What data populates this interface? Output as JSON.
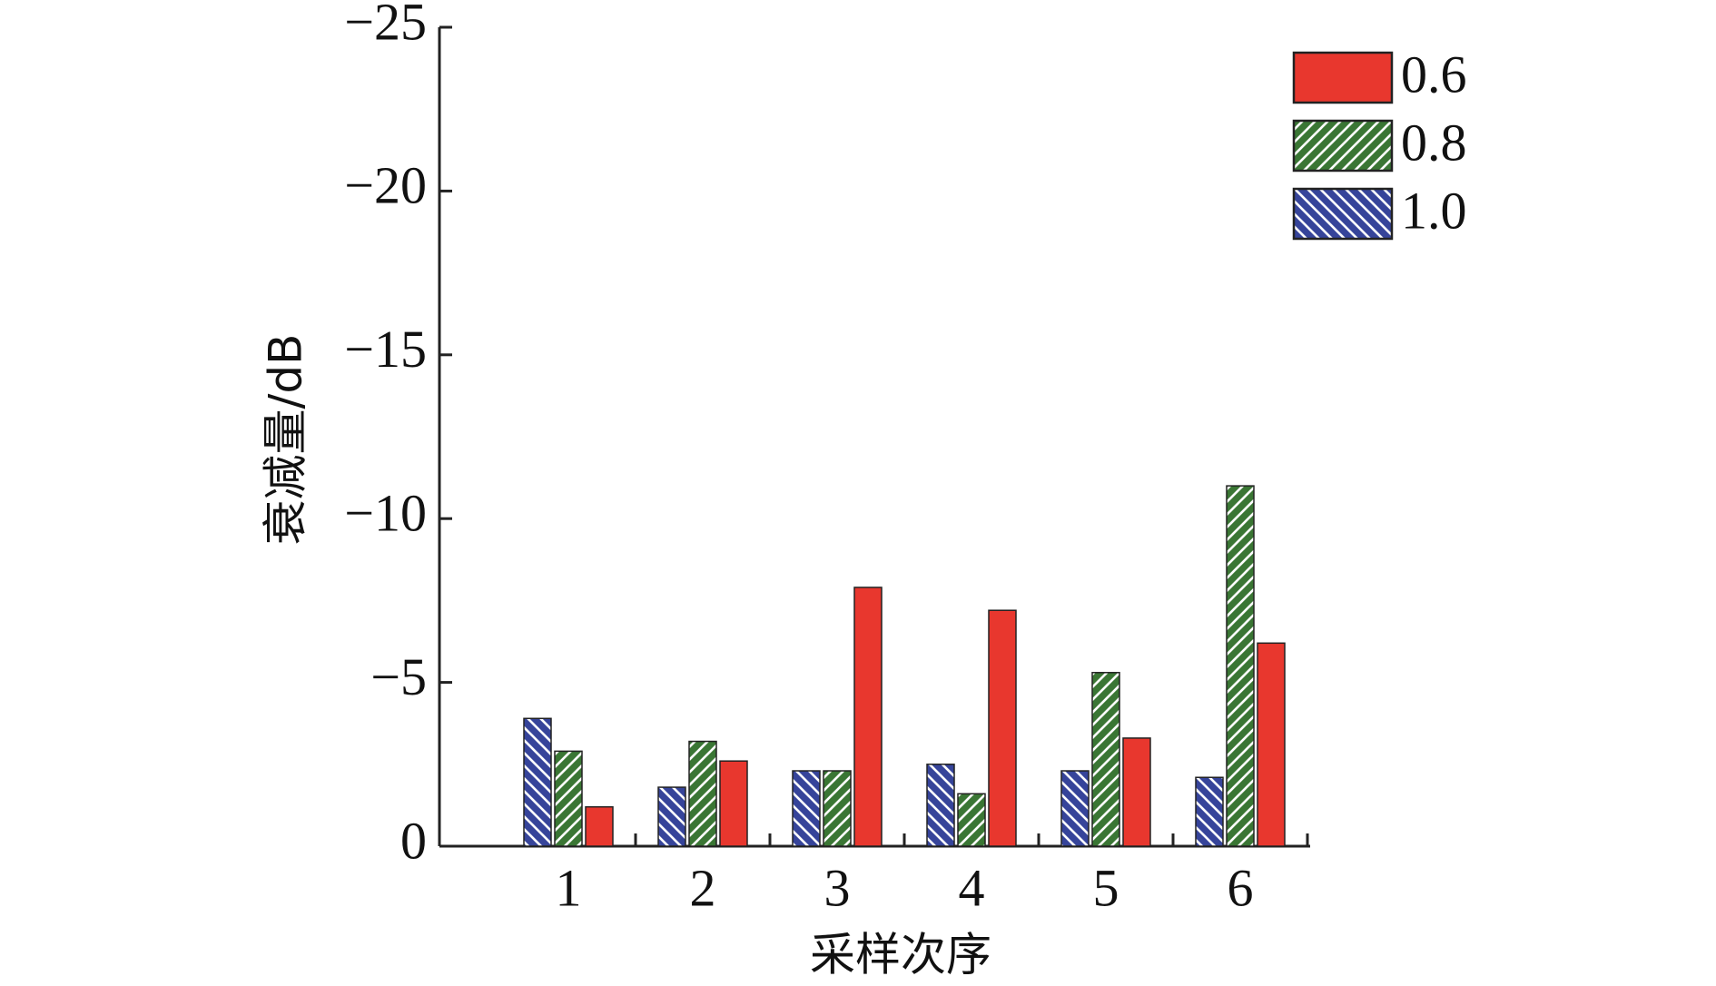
{
  "chart_data": {
    "type": "bar",
    "xlabel": "采样次序",
    "ylabel": "衰减量/dB",
    "categories": [
      "1",
      "2",
      "3",
      "4",
      "5",
      "6"
    ],
    "series": [
      {
        "name": "0.6",
        "color": "#e8372e",
        "hatch": "none",
        "values": [
          -1.2,
          -2.6,
          -7.9,
          -7.2,
          -3.3,
          -6.2
        ]
      },
      {
        "name": "0.8",
        "color": "#3a7634",
        "hatch": "/",
        "values": [
          -2.9,
          -3.2,
          -2.3,
          -1.6,
          -5.3,
          -11.0
        ]
      },
      {
        "name": "1.0",
        "color": "#36449a",
        "hatch": "\\",
        "values": [
          -3.9,
          -1.8,
          -2.3,
          -2.5,
          -2.3,
          -2.1
        ]
      }
    ],
    "ylim": [
      0,
      -25
    ],
    "yticks": [
      {
        "value": 0,
        "label": "0"
      },
      {
        "value": -5,
        "label": "−5"
      },
      {
        "value": -10,
        "label": "−10"
      },
      {
        "value": -15,
        "label": "−15"
      },
      {
        "value": -20,
        "label": "−20"
      },
      {
        "value": -25,
        "label": "−25"
      }
    ],
    "legend": "upper right",
    "grid": false
  }
}
